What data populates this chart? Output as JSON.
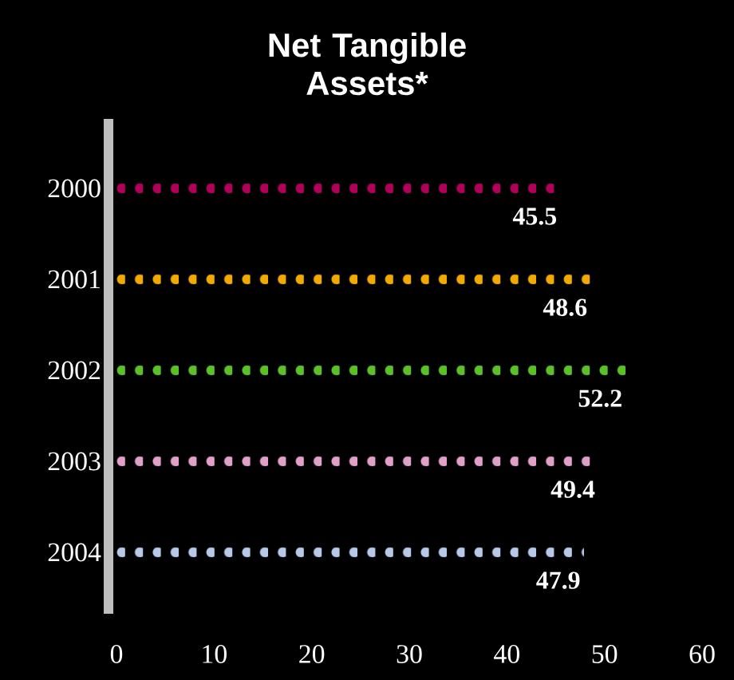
{
  "chart_data": {
    "type": "bar",
    "orientation": "horizontal",
    "title": "Net Tangible Assets*",
    "categories": [
      "2000",
      "2001",
      "2002",
      "2003",
      "2004"
    ],
    "values": [
      45.5,
      48.6,
      52.2,
      49.4,
      47.9
    ],
    "colors": [
      "#b0005a",
      "#f2a900",
      "#5cc02a",
      "#e0a0c8",
      "#b8c8e8"
    ],
    "xlim": [
      0,
      60
    ],
    "xticks": [
      0,
      10,
      20,
      30,
      40,
      50,
      60
    ],
    "data_labels": true,
    "marker": "circle"
  }
}
